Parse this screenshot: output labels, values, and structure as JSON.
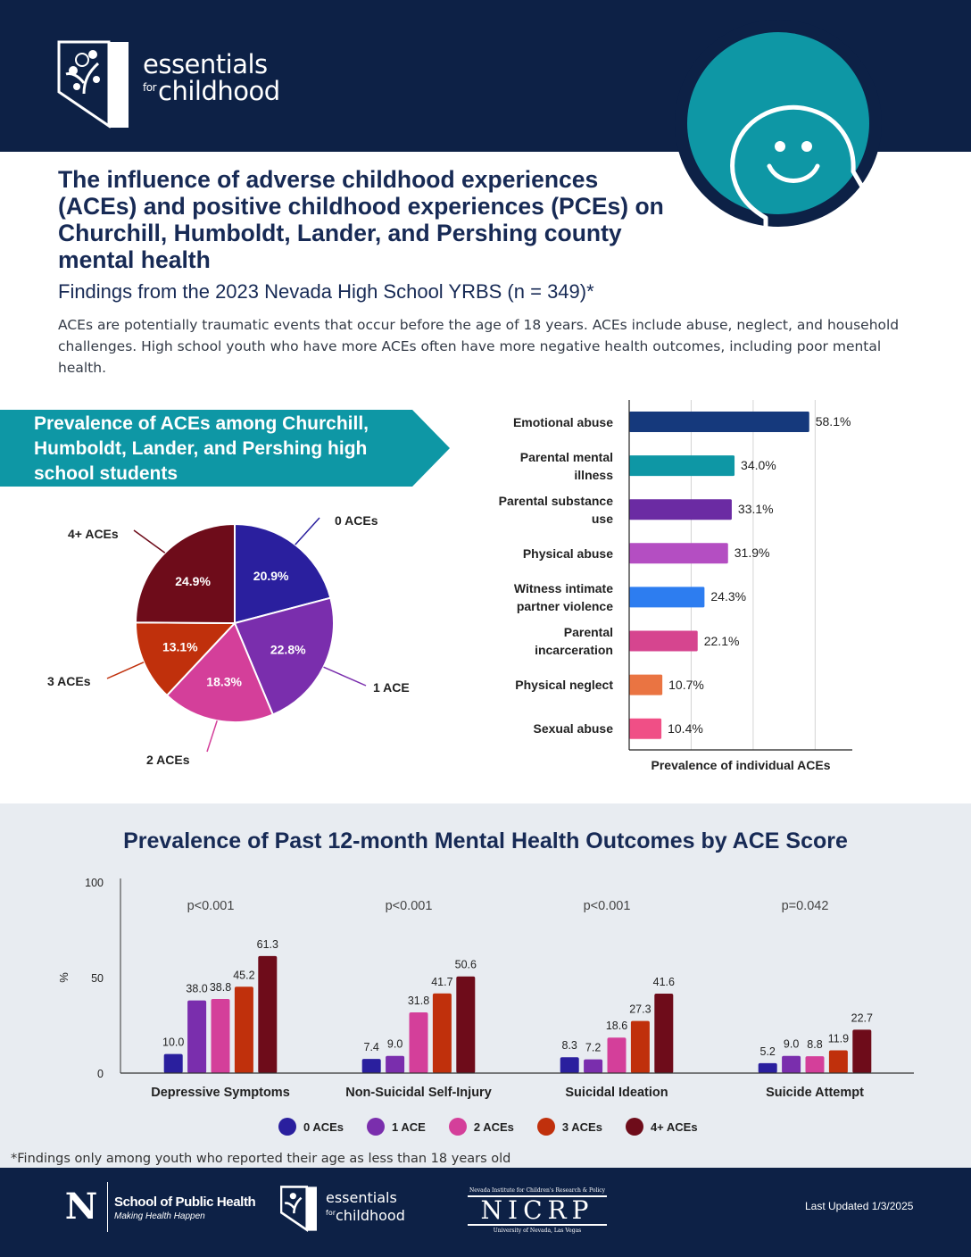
{
  "header": {
    "brand_line1": "essentials",
    "brand_for": "for",
    "brand_line2": "childhood"
  },
  "title": "The influence of adverse childhood experiences (ACEs) and positive childhood experiences (PCEs) on Churchill, Humboldt, Lander, and Pershing county mental health",
  "subtitle": "Findings from the 2023 Nevada High School YRBS (n = 349)*",
  "intro": "ACEs are potentially traumatic events that occur before the age of 18 years. ACEs include abuse, neglect, and household challenges. High school youth who have more ACEs often have more negative health outcomes, including poor mental health.",
  "aces_banner": "Prevalence of ACEs among Churchill, Humboldt, Lander, and Pershing high school students",
  "chart_data": [
    {
      "type": "pie",
      "categories": [
        "0 ACEs",
        "1 ACE",
        "2 ACEs",
        "3 ACEs",
        "4+ ACEs"
      ],
      "values": [
        20.9,
        22.8,
        18.3,
        13.1,
        24.9
      ],
      "value_labels": [
        "20.9%",
        "22.8%",
        "18.3%",
        "13.1%",
        "24.9%"
      ],
      "colors": [
        "#2a1f9e",
        "#7a2ead",
        "#d43f9a",
        "#c0300c",
        "#6e0c1a"
      ]
    },
    {
      "type": "bar",
      "orientation": "horizontal",
      "categories": [
        "Emotional abuse",
        "Parental mental illness",
        "Parental substance use",
        "Physical abuse",
        "Witness intimate partner violence",
        "Parental incarceration",
        "Physical neglect",
        "Sexual abuse"
      ],
      "values": [
        58.1,
        34.0,
        33.1,
        31.9,
        24.3,
        22.1,
        10.7,
        10.4
      ],
      "value_labels": [
        "58.1%",
        "34.0%",
        "33.1%",
        "31.9%",
        "24.3%",
        "22.1%",
        "10.7%",
        "10.4%"
      ],
      "colors": [
        "#15397c",
        "#0e97a5",
        "#6b2ba3",
        "#b44ec2",
        "#2d7df0",
        "#d6458f",
        "#ea7442",
        "#f04f86"
      ],
      "xlabel": "Prevalence of individual ACEs",
      "xlim": [
        0,
        72
      ],
      "grid": true
    },
    {
      "type": "bar",
      "title": "Prevalence of Past 12-month Mental Health Outcomes by ACE Score",
      "categories": [
        "Depressive Symptoms",
        "Non-Suicidal Self-Injury",
        "Suicidal Ideation",
        "Suicide Attempt"
      ],
      "p_values": [
        "p<0.001",
        "p<0.001",
        "p<0.001",
        "p=0.042"
      ],
      "series": [
        {
          "name": "0 ACEs",
          "values": [
            10.0,
            7.4,
            8.3,
            5.2
          ],
          "color": "#2a1f9e"
        },
        {
          "name": "1 ACE",
          "values": [
            38.0,
            9.0,
            7.2,
            9.0
          ],
          "color": "#7a2ead"
        },
        {
          "name": "2 ACEs",
          "values": [
            38.8,
            31.8,
            18.6,
            8.8
          ],
          "color": "#d43f9a"
        },
        {
          "name": "3 ACEs",
          "values": [
            45.2,
            41.7,
            27.3,
            11.9
          ],
          "color": "#c0300c"
        },
        {
          "name": "4+ ACEs",
          "values": [
            61.3,
            50.6,
            41.6,
            22.7
          ],
          "color": "#6e0c1a"
        }
      ],
      "ylabel": "%",
      "ylim": [
        0,
        100
      ],
      "yticks": [
        "0",
        "50",
        "100"
      ],
      "legend": "bottom"
    }
  ],
  "footnote": "*Findings only among youth who reported their age as less than 18 years old",
  "footer": {
    "sph_name": "School of Public Health",
    "sph_tagline": "Making Health Happen",
    "ec_line1": "essentials",
    "ec_for": "for",
    "ec_line2": "childhood",
    "nicrp_top": "Nevada Institute for Children's Research & Policy",
    "nicrp": "NICRP",
    "nicrp_bottom": "University of Nevada, Las Vegas",
    "updated": "Last Updated 1/3/2025"
  }
}
